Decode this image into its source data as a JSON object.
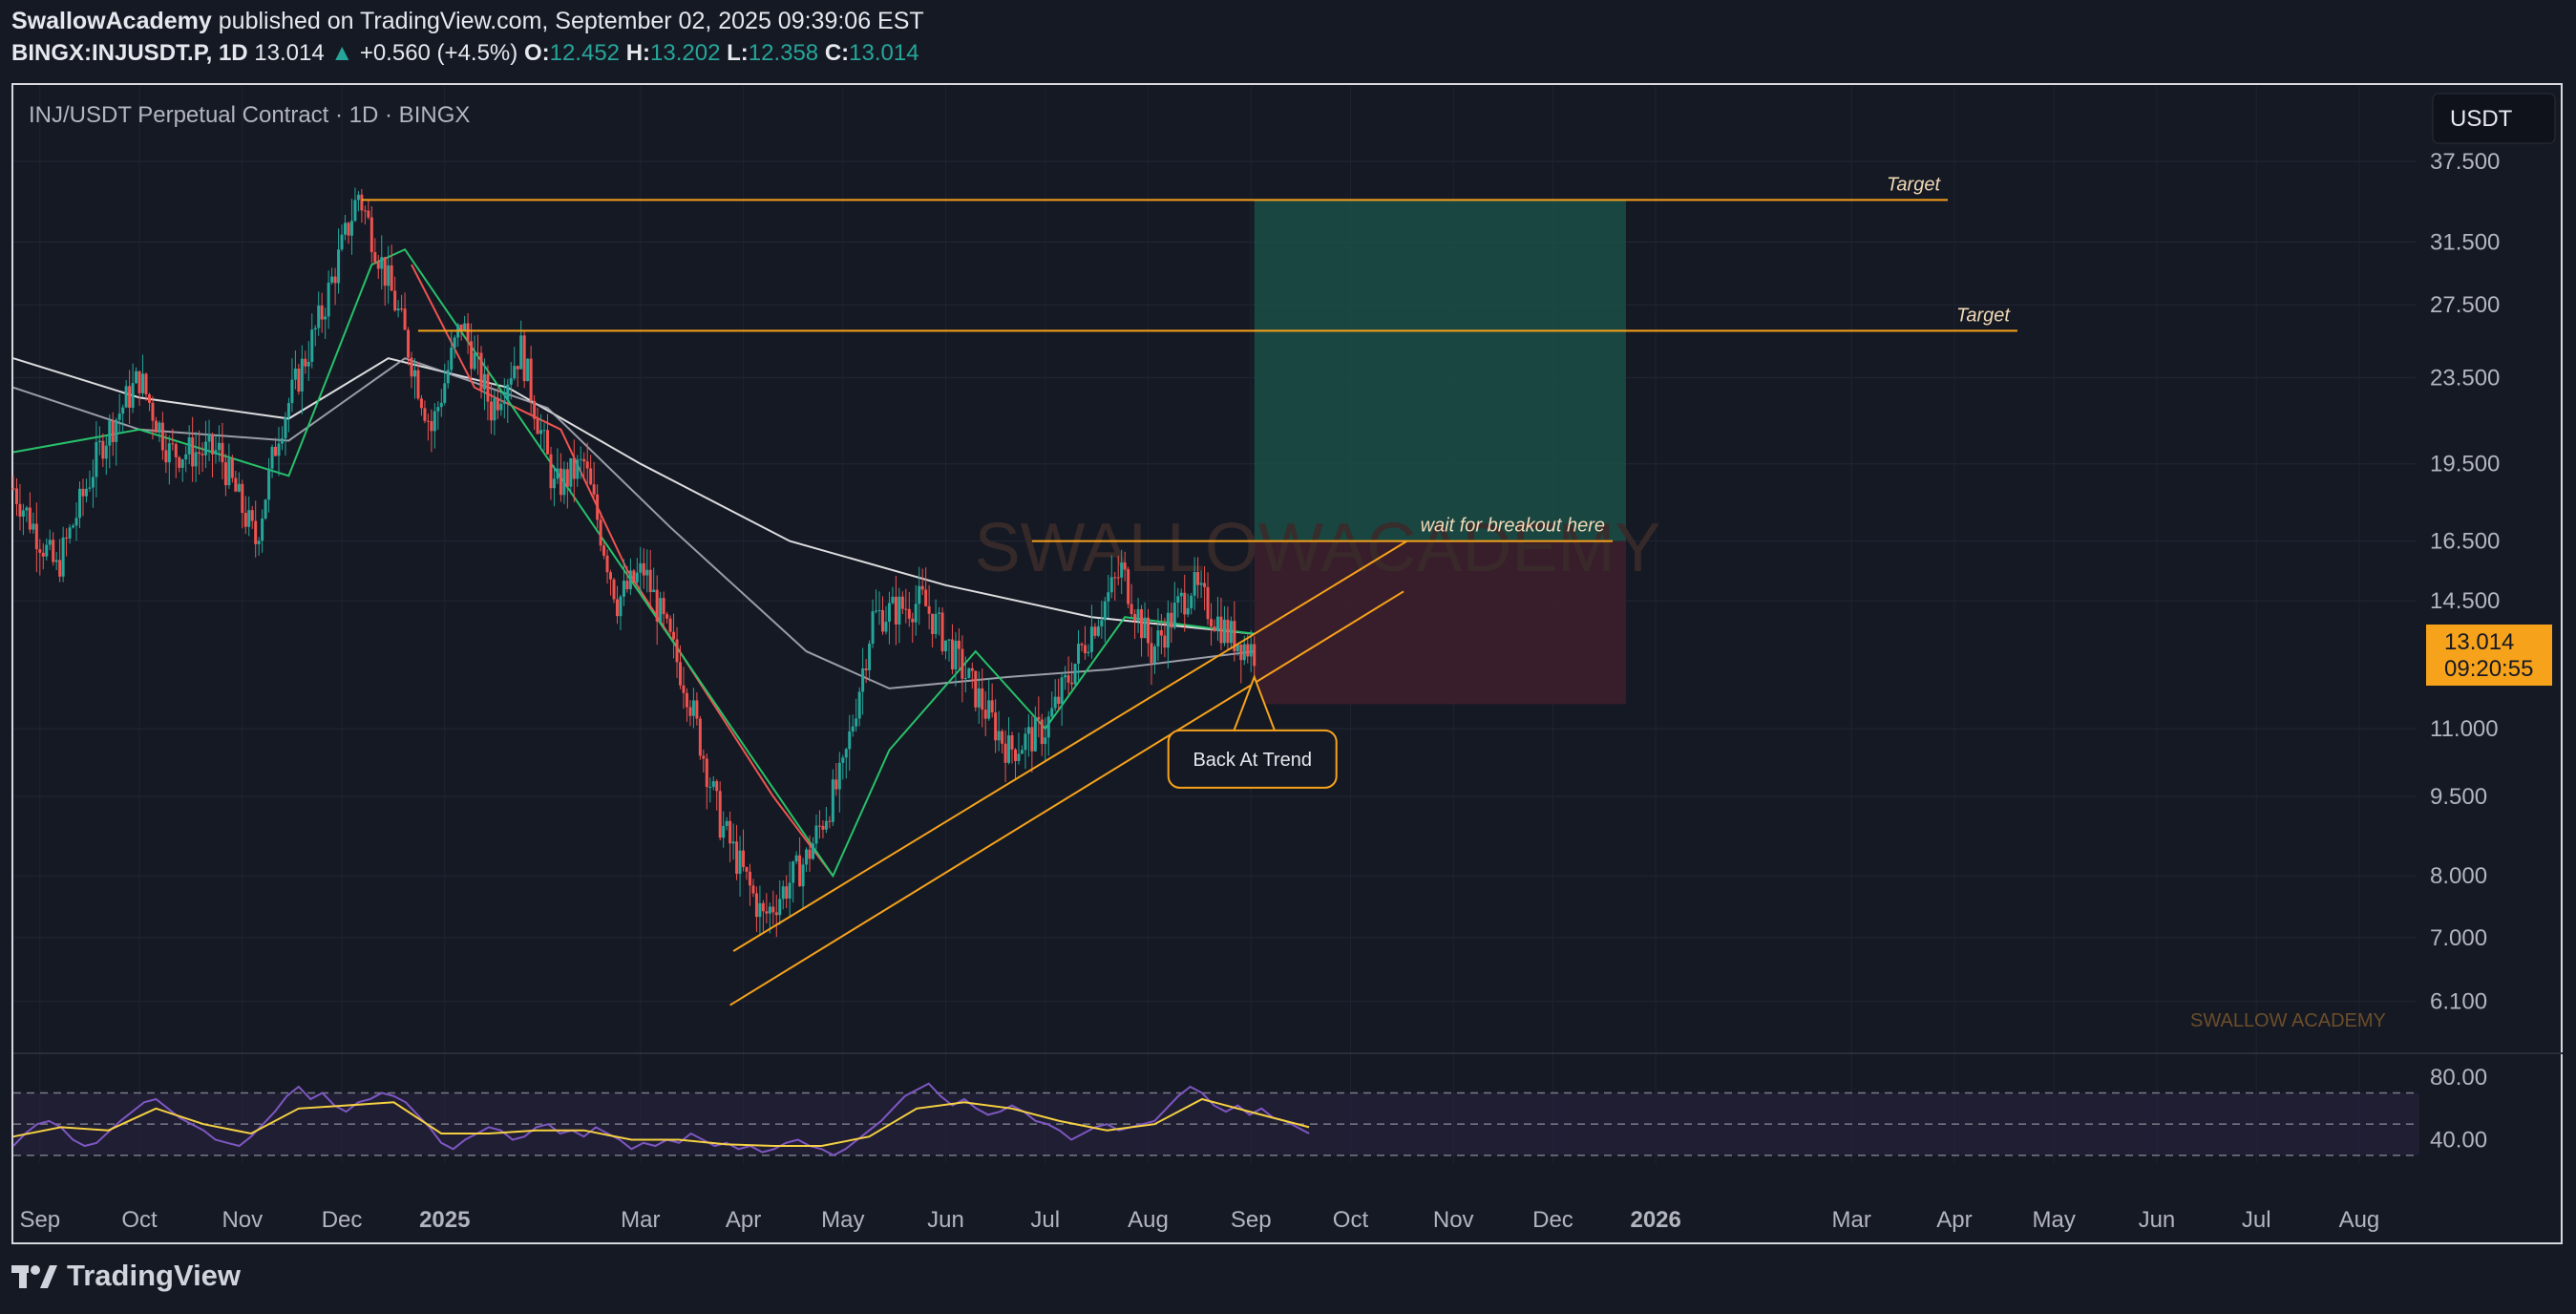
{
  "header": {
    "author": "SwallowAcademy",
    "published_text": "published on TradingView.com, September 02, 2025 09:39:06 EST",
    "symbol": "BINGX:INJUSDT.P, 1D",
    "last_price": "13.014",
    "change": "+0.560 (+4.5%)",
    "open_label": "O:",
    "open": "12.452",
    "high_label": "H:",
    "high": "13.202",
    "low_label": "L:",
    "low": "12.358",
    "close_label": "C:",
    "close": "13.014"
  },
  "chart_title": "INJ/USDT Perpetual Contract · 1D · BINGX",
  "currency_button": "USDT",
  "price_tag": {
    "price": "13.014",
    "countdown": "09:20:55"
  },
  "watermark": "SWALLOWACADEMY",
  "corner_watermark": "SWALLOW ACADEMY",
  "footer": {
    "brand": "TradingView",
    "logo_icon": "tradingview-logo-icon"
  },
  "colors": {
    "background": "#151924",
    "up": "#26a69a",
    "down": "#ef5350",
    "annotation": "#f7a21b",
    "target_zone": "#1b4f48",
    "stop_zone": "#3c1f2b",
    "rsi_line": "#7e57c2",
    "rsi_ma": "#f5d142"
  },
  "chart_data": {
    "type": "candlestick",
    "price_axis": {
      "scale": "log",
      "ticks": [
        "37.500",
        "31.500",
        "27.500",
        "23.500",
        "19.500",
        "16.500",
        "14.500",
        "11.000",
        "9.500",
        "8.000",
        "7.000",
        "6.100"
      ],
      "range": [
        5.6,
        39
      ]
    },
    "time_axis": {
      "ticks": [
        "Sep",
        "Oct",
        "Nov",
        "Dec",
        "2025",
        "Mar",
        "Apr",
        "May",
        "Jun",
        "Jul",
        "Aug",
        "Sep",
        "Oct",
        "Nov",
        "Dec",
        "2026",
        "Mar",
        "Apr",
        "May",
        "Jun",
        "Jul",
        "Aug"
      ],
      "range": [
        "2024-08-24",
        "2026-08-18"
      ]
    },
    "price_path": [
      [
        "2024-08-24",
        18.5
      ],
      [
        "2024-09-06",
        15.5
      ],
      [
        "2024-09-20",
        20.5
      ],
      [
        "2024-10-01",
        23.5
      ],
      [
        "2024-10-10",
        20.0
      ],
      [
        "2024-10-25",
        20.0
      ],
      [
        "2024-11-05",
        16.5
      ],
      [
        "2024-11-12",
        21.0
      ],
      [
        "2024-11-25",
        27.0
      ],
      [
        "2024-12-06",
        35.0
      ],
      [
        "2024-12-18",
        27.0
      ],
      [
        "2024-12-28",
        21.0
      ],
      [
        "2025-01-06",
        26.5
      ],
      [
        "2025-01-15",
        22.0
      ],
      [
        "2025-01-24",
        25.0
      ],
      [
        "2025-02-03",
        18.5
      ],
      [
        "2025-02-12",
        19.5
      ],
      [
        "2025-02-22",
        14.5
      ],
      [
        "2025-03-02",
        15.5
      ],
      [
        "2025-03-15",
        12.0
      ],
      [
        "2025-03-25",
        9.0
      ],
      [
        "2025-04-07",
        7.3
      ],
      [
        "2025-04-20",
        8.3
      ],
      [
        "2025-05-01",
        10.0
      ],
      [
        "2025-05-10",
        14.0
      ],
      [
        "2025-05-25",
        14.5
      ],
      [
        "2025-06-06",
        12.5
      ],
      [
        "2025-06-20",
        10.5
      ],
      [
        "2025-07-01",
        11.0
      ],
      [
        "2025-07-14",
        13.5
      ],
      [
        "2025-07-24",
        15.5
      ],
      [
        "2025-08-02",
        13.0
      ],
      [
        "2025-08-14",
        15.0
      ],
      [
        "2025-08-25",
        13.5
      ],
      [
        "2025-09-02",
        13.0
      ]
    ],
    "moving_averages": [
      {
        "color": "#ffffff",
        "points": [
          [
            "2024-08-24",
            24.5
          ],
          [
            "2024-10-01",
            22.5
          ],
          [
            "2024-11-15",
            21.5
          ],
          [
            "2024-12-15",
            24.5
          ],
          [
            "2025-01-20",
            23.0
          ],
          [
            "2025-03-01",
            19.5
          ],
          [
            "2025-04-15",
            16.5
          ],
          [
            "2025-06-01",
            15.0
          ],
          [
            "2025-07-15",
            14.0
          ],
          [
            "2025-09-02",
            13.5
          ]
        ]
      },
      {
        "color": "#b2b5be",
        "points": [
          [
            "2024-08-24",
            23.0
          ],
          [
            "2024-10-01",
            21.0
          ],
          [
            "2024-11-15",
            20.5
          ],
          [
            "2024-12-20",
            24.5
          ],
          [
            "2025-02-01",
            22.0
          ],
          [
            "2025-03-10",
            17.0
          ],
          [
            "2025-04-20",
            13.0
          ],
          [
            "2025-05-15",
            12.0
          ],
          [
            "2025-06-20",
            12.3
          ],
          [
            "2025-07-20",
            12.5
          ],
          [
            "2025-09-02",
            13.0
          ]
        ]
      },
      {
        "color": "#ef5350",
        "points": [
          [
            "2024-12-22",
            30.0
          ],
          [
            "2025-01-10",
            23.0
          ],
          [
            "2025-02-05",
            21.0
          ],
          [
            "2025-02-25",
            15.5
          ],
          [
            "2025-03-20",
            12.0
          ],
          [
            "2025-04-10",
            9.5
          ],
          [
            "2025-04-28",
            8.0
          ]
        ]
      },
      {
        "color": "#26c26a",
        "points": [
          [
            "2024-08-24",
            20.0
          ],
          [
            "2024-10-01",
            21.0
          ],
          [
            "2024-11-15",
            19.0
          ],
          [
            "2024-12-10",
            30.0
          ],
          [
            "2024-12-20",
            31.0
          ],
          [
            "2025-04-28",
            8.0
          ],
          [
            "2025-05-15",
            10.5
          ],
          [
            "2025-06-10",
            13.0
          ],
          [
            "2025-07-01",
            11.0
          ],
          [
            "2025-07-25",
            14.0
          ],
          [
            "2025-09-02",
            13.5
          ]
        ]
      }
    ],
    "annotations": {
      "targets": [
        {
          "label": "Target",
          "price": 34.5,
          "from": "2024-12-07",
          "to": "2026-03-30"
        },
        {
          "label": "Target",
          "price": 26.0,
          "from": "2024-12-24",
          "to": "2026-04-20"
        }
      ],
      "breakout": {
        "label": "wait for breakout here",
        "price": 16.5,
        "from": "2025-06-27",
        "to": "2025-12-19"
      },
      "long_position": {
        "from": "2025-09-02",
        "to": "2025-12-23",
        "entry": 16.5,
        "target": 34.5,
        "stop": 11.6
      },
      "channel_lines": [
        {
          "from": [
            "2025-03-29",
            6.8
          ],
          "to": [
            "2025-10-18",
            16.5
          ]
        },
        {
          "from": [
            "2025-03-28",
            6.05
          ],
          "to": [
            "2025-10-17",
            14.8
          ]
        }
      ],
      "callout": {
        "text": "Back At Trend",
        "point": [
          "2025-09-02",
          12.3
        ]
      }
    },
    "rsi": {
      "axis_ticks": [
        "80.00",
        "40.00"
      ],
      "levels": [
        70,
        50,
        30
      ],
      "range": [
        25,
        85
      ],
      "points": [
        [
          0,
          36
        ],
        [
          3,
          44
        ],
        [
          6,
          50
        ],
        [
          9,
          52
        ],
        [
          12,
          48
        ],
        [
          15,
          40
        ],
        [
          18,
          36
        ],
        [
          21,
          38
        ],
        [
          24,
          45
        ],
        [
          27,
          52
        ],
        [
          30,
          58
        ],
        [
          33,
          64
        ],
        [
          36,
          66
        ],
        [
          39,
          60
        ],
        [
          42,
          54
        ],
        [
          45,
          50
        ],
        [
          48,
          46
        ],
        [
          51,
          40
        ],
        [
          54,
          38
        ],
        [
          57,
          36
        ],
        [
          60,
          42
        ],
        [
          63,
          50
        ],
        [
          66,
          58
        ],
        [
          69,
          68
        ],
        [
          72,
          74
        ],
        [
          75,
          66
        ],
        [
          78,
          70
        ],
        [
          81,
          62
        ],
        [
          84,
          58
        ],
        [
          87,
          64
        ],
        [
          90,
          66
        ],
        [
          93,
          70
        ],
        [
          96,
          68
        ],
        [
          99,
          64
        ],
        [
          102,
          56
        ],
        [
          105,
          48
        ],
        [
          108,
          38
        ],
        [
          111,
          34
        ],
        [
          114,
          40
        ],
        [
          117,
          44
        ],
        [
          120,
          48
        ],
        [
          123,
          46
        ],
        [
          126,
          40
        ],
        [
          129,
          42
        ],
        [
          132,
          48
        ],
        [
          135,
          50
        ],
        [
          138,
          44
        ],
        [
          141,
          46
        ],
        [
          144,
          42
        ],
        [
          147,
          48
        ],
        [
          150,
          44
        ],
        [
          153,
          40
        ],
        [
          156,
          34
        ],
        [
          159,
          38
        ],
        [
          162,
          36
        ],
        [
          165,
          40
        ],
        [
          168,
          38
        ],
        [
          171,
          44
        ],
        [
          174,
          40
        ],
        [
          177,
          36
        ],
        [
          180,
          38
        ],
        [
          183,
          34
        ],
        [
          186,
          36
        ],
        [
          189,
          32
        ],
        [
          192,
          34
        ],
        [
          195,
          38
        ],
        [
          198,
          40
        ],
        [
          201,
          36
        ],
        [
          204,
          34
        ],
        [
          207,
          30
        ],
        [
          210,
          34
        ],
        [
          213,
          40
        ],
        [
          216,
          46
        ],
        [
          219,
          52
        ],
        [
          222,
          60
        ],
        [
          225,
          68
        ],
        [
          228,
          72
        ],
        [
          231,
          76
        ],
        [
          234,
          68
        ],
        [
          237,
          62
        ],
        [
          240,
          66
        ],
        [
          243,
          60
        ],
        [
          246,
          56
        ],
        [
          249,
          58
        ],
        [
          252,
          62
        ],
        [
          255,
          58
        ],
        [
          258,
          52
        ],
        [
          261,
          50
        ],
        [
          264,
          46
        ],
        [
          267,
          40
        ],
        [
          270,
          44
        ],
        [
          273,
          48
        ],
        [
          276,
          50
        ],
        [
          279,
          46
        ],
        [
          282,
          48
        ],
        [
          285,
          50
        ],
        [
          288,
          52
        ],
        [
          291,
          60
        ],
        [
          294,
          68
        ],
        [
          297,
          74
        ],
        [
          300,
          70
        ],
        [
          303,
          62
        ],
        [
          306,
          58
        ],
        [
          309,
          62
        ],
        [
          312,
          56
        ],
        [
          315,
          60
        ],
        [
          318,
          54
        ],
        [
          321,
          52
        ],
        [
          324,
          48
        ],
        [
          327,
          44
        ]
      ],
      "ma_points": [
        [
          0,
          42
        ],
        [
          12,
          48
        ],
        [
          24,
          46
        ],
        [
          36,
          60
        ],
        [
          48,
          50
        ],
        [
          60,
          44
        ],
        [
          72,
          60
        ],
        [
          84,
          62
        ],
        [
          96,
          64
        ],
        [
          108,
          44
        ],
        [
          120,
          44
        ],
        [
          132,
          46
        ],
        [
          144,
          46
        ],
        [
          156,
          40
        ],
        [
          168,
          40
        ],
        [
          180,
          37
        ],
        [
          192,
          36
        ],
        [
          204,
          36
        ],
        [
          216,
          42
        ],
        [
          228,
          60
        ],
        [
          240,
          64
        ],
        [
          252,
          60
        ],
        [
          264,
          52
        ],
        [
          276,
          46
        ],
        [
          288,
          50
        ],
        [
          300,
          66
        ],
        [
          312,
          58
        ],
        [
          327,
          48
        ]
      ]
    }
  }
}
